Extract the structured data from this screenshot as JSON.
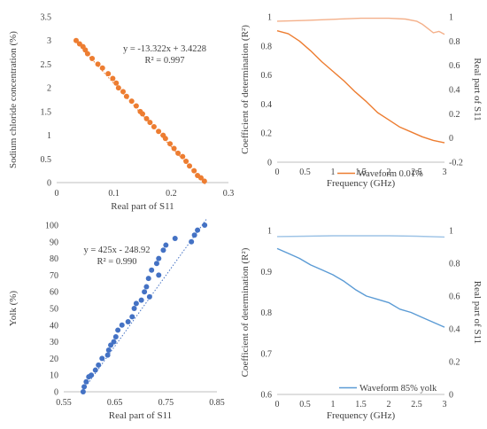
{
  "chart_data": [
    {
      "type": "scatter",
      "xlabel": "Real part of S11",
      "ylabel": "Sodium chloride concentration (%)",
      "xlim": [
        0,
        0.3
      ],
      "ylim": [
        0,
        3.5
      ],
      "xticks": [
        "0",
        "0.1",
        "0.2",
        "0.3"
      ],
      "yticks": [
        "0",
        "0.5",
        "1",
        "1.5",
        "2",
        "2.5",
        "3",
        "3.5"
      ],
      "equation": "y = -13.322x + 3.4228",
      "r2": "R² = 0.997",
      "trendline": {
        "slope": -13.322,
        "intercept": 3.4228,
        "x_range": [
          0.032,
          0.26
        ]
      },
      "color": "#ED7D31",
      "points": [
        [
          0.034,
          3.0
        ],
        [
          0.04,
          2.93
        ],
        [
          0.046,
          2.87
        ],
        [
          0.05,
          2.8
        ],
        [
          0.054,
          2.72
        ],
        [
          0.062,
          2.62
        ],
        [
          0.072,
          2.5
        ],
        [
          0.08,
          2.42
        ],
        [
          0.09,
          2.3
        ],
        [
          0.098,
          2.2
        ],
        [
          0.104,
          2.1
        ],
        [
          0.108,
          2.0
        ],
        [
          0.116,
          1.92
        ],
        [
          0.122,
          1.82
        ],
        [
          0.131,
          1.72
        ],
        [
          0.139,
          1.62
        ],
        [
          0.146,
          1.5
        ],
        [
          0.15,
          1.45
        ],
        [
          0.157,
          1.35
        ],
        [
          0.163,
          1.27
        ],
        [
          0.17,
          1.18
        ],
        [
          0.178,
          1.08
        ],
        [
          0.186,
          1.0
        ],
        [
          0.19,
          0.93
        ],
        [
          0.198,
          0.82
        ],
        [
          0.205,
          0.72
        ],
        [
          0.212,
          0.62
        ],
        [
          0.22,
          0.55
        ],
        [
          0.226,
          0.45
        ],
        [
          0.232,
          0.35
        ],
        [
          0.24,
          0.25
        ],
        [
          0.246,
          0.15
        ],
        [
          0.252,
          0.1
        ],
        [
          0.258,
          0.03
        ]
      ]
    },
    {
      "type": "line",
      "xlabel": "Frequency (GHz)",
      "ylabel": "Coefficient of determination (R²)",
      "ylabel_right": "Real part of S11",
      "xlim": [
        0,
        3
      ],
      "ylim": [
        0,
        1
      ],
      "ylim_right": [
        -0.2,
        1
      ],
      "xticks": [
        "0",
        "0.5",
        "1",
        "1.5",
        "2",
        "2.5",
        "3"
      ],
      "yticks": [
        "0",
        "0.2",
        "0.4",
        "0.6",
        "0.8",
        "1"
      ],
      "yticks_right": [
        "-0.2",
        "0",
        "0.2",
        "0.4",
        "0.6",
        "0.8",
        "1"
      ],
      "legend": "Waveform 0.01%",
      "series": [
        {
          "axis": "left",
          "color": "#F4B08A",
          "points": [
            [
              0,
              0.97
            ],
            [
              0.5,
              0.975
            ],
            [
              1.0,
              0.983
            ],
            [
              1.5,
              0.99
            ],
            [
              2.0,
              0.99
            ],
            [
              2.3,
              0.985
            ],
            [
              2.5,
              0.97
            ],
            [
              2.6,
              0.95
            ],
            [
              2.7,
              0.92
            ],
            [
              2.8,
              0.89
            ],
            [
              2.9,
              0.9
            ],
            [
              3.0,
              0.88
            ]
          ]
        },
        {
          "axis": "right",
          "color": "#ED7D31",
          "points": [
            [
              0,
              0.885
            ],
            [
              0.2,
              0.86
            ],
            [
              0.4,
              0.8
            ],
            [
              0.6,
              0.72
            ],
            [
              0.8,
              0.63
            ],
            [
              1.0,
              0.55
            ],
            [
              1.2,
              0.47
            ],
            [
              1.4,
              0.38
            ],
            [
              1.6,
              0.3
            ],
            [
              1.8,
              0.21
            ],
            [
              2.0,
              0.15
            ],
            [
              2.2,
              0.09
            ],
            [
              2.4,
              0.05
            ],
            [
              2.6,
              0.01
            ],
            [
              2.8,
              -0.02
            ],
            [
              3.0,
              -0.04
            ]
          ]
        }
      ]
    },
    {
      "type": "scatter",
      "xlabel": "Real part of S11",
      "ylabel": "Yolk (%)",
      "xlim": [
        0.55,
        0.85
      ],
      "ylim": [
        0,
        100
      ],
      "xticks": [
        "0.55",
        "0.65",
        "0.75",
        "0.85"
      ],
      "yticks": [
        "0",
        "10",
        "20",
        "30",
        "40",
        "50",
        "60",
        "70",
        "80",
        "90",
        "100"
      ],
      "equation": "y = 425x - 248.92",
      "r2": "R² = 0.990",
      "trendline": {
        "slope": 425,
        "intercept": -248.92,
        "x_range": [
          0.586,
          0.83
        ]
      },
      "color": "#4472C4",
      "points": [
        [
          0.588,
          0.0
        ],
        [
          0.59,
          3.0
        ],
        [
          0.594,
          6.0
        ],
        [
          0.599,
          9.0
        ],
        [
          0.604,
          10.0
        ],
        [
          0.612,
          13.0
        ],
        [
          0.618,
          16.0
        ],
        [
          0.625,
          20.0
        ],
        [
          0.636,
          22.0
        ],
        [
          0.638,
          25.0
        ],
        [
          0.642,
          28.0
        ],
        [
          0.648,
          30.0
        ],
        [
          0.652,
          33.0
        ],
        [
          0.656,
          37.0
        ],
        [
          0.664,
          40.0
        ],
        [
          0.676,
          42.0
        ],
        [
          0.684,
          45.0
        ],
        [
          0.688,
          50.0
        ],
        [
          0.692,
          53.0
        ],
        [
          0.702,
          55.0
        ],
        [
          0.708,
          60.0
        ],
        [
          0.712,
          63.0
        ],
        [
          0.716,
          68.0
        ],
        [
          0.722,
          73.0
        ],
        [
          0.732,
          77.0
        ],
        [
          0.736,
          80.0
        ],
        [
          0.745,
          85.0
        ],
        [
          0.75,
          88.0
        ],
        [
          0.736,
          70.0
        ],
        [
          0.718,
          57.0
        ],
        [
          0.768,
          92.0
        ],
        [
          0.806,
          94.0
        ],
        [
          0.812,
          97.0
        ],
        [
          0.826,
          100.0
        ],
        [
          0.8,
          90.0
        ]
      ]
    },
    {
      "type": "line",
      "xlabel": "Frequency (GHz)",
      "ylabel": "Coefficient of determination (R²)",
      "ylabel_right": "Real part of S11",
      "xlim": [
        0,
        3
      ],
      "ylim": [
        0.6,
        1
      ],
      "ylim_right": [
        0,
        1
      ],
      "xticks": [
        "0",
        "0.5",
        "1",
        "1.5",
        "2",
        "2.5",
        "3"
      ],
      "yticks": [
        "0.6",
        "0.7",
        "0.8",
        "0.9",
        "1"
      ],
      "yticks_right": [
        "0",
        "0.2",
        "0.4",
        "0.6",
        "0.8",
        "1"
      ],
      "legend": "Waveform 85% yolk",
      "series": [
        {
          "axis": "left",
          "color": "#9DC3E6",
          "points": [
            [
              0,
              0.985
            ],
            [
              0.5,
              0.986
            ],
            [
              1.0,
              0.987
            ],
            [
              1.5,
              0.987
            ],
            [
              2.0,
              0.987
            ],
            [
              2.5,
              0.986
            ],
            [
              3.0,
              0.984
            ]
          ]
        },
        {
          "axis": "right",
          "color": "#5B9BD5",
          "points": [
            [
              0,
              0.89
            ],
            [
              0.2,
              0.86
            ],
            [
              0.4,
              0.83
            ],
            [
              0.6,
              0.79
            ],
            [
              0.8,
              0.76
            ],
            [
              1.0,
              0.73
            ],
            [
              1.2,
              0.69
            ],
            [
              1.4,
              0.64
            ],
            [
              1.6,
              0.6
            ],
            [
              1.8,
              0.58
            ],
            [
              2.0,
              0.56
            ],
            [
              2.2,
              0.52
            ],
            [
              2.4,
              0.5
            ],
            [
              2.6,
              0.47
            ],
            [
              2.8,
              0.44
            ],
            [
              3.0,
              0.41
            ]
          ]
        }
      ]
    }
  ]
}
